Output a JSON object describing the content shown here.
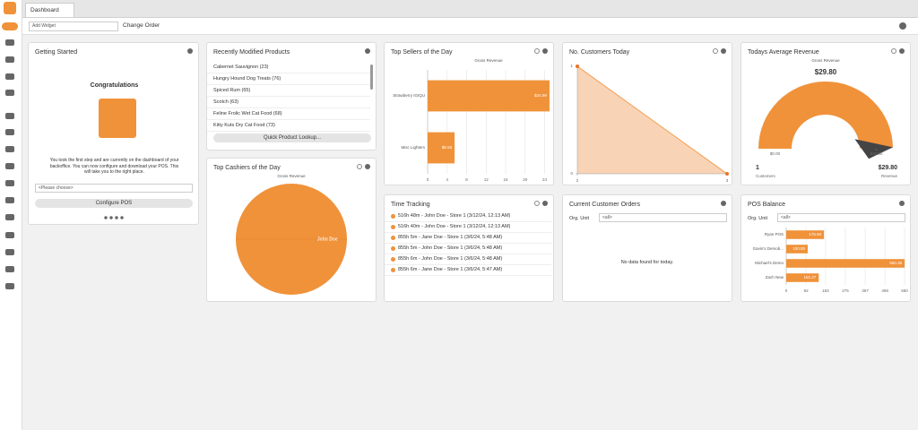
{
  "tabs": [
    "Dashboard"
  ],
  "toolbar": {
    "add_widget": "Add Widget",
    "change_order": "Change Order"
  },
  "getting_started": {
    "title": "Getting Started",
    "heading": "Congratulations",
    "text": "You took the first step and are currently on the dashboard of your backoffice. You can now configure and download your POS. This will take you to the right place.",
    "select": "<Please choose>",
    "button": "Configure POS"
  },
  "recent_products": {
    "title": "Recently Modified Products",
    "items": [
      "Cabernet Sauvignon (23)",
      "Hungry Hound Dog Treats (76)",
      "Spiced Rum (65)",
      "Scotch (63)",
      "Feline Frolic Wet Cat Food (68)",
      "Kitty Kuts Dry Cat Food (73)"
    ],
    "button": "Quick Product Lookup..."
  },
  "time_tracking": {
    "title": "Time Tracking",
    "items": [
      "516h 48m - John Doe - Store 1 (3/12/24, 12:13 AM)",
      "516h 40m - John Doe - Store 1 (3/12/24, 12:13 AM)",
      "855h 5m - Jane Doe - Store 1 (3/6/24, 5:48 AM)",
      "855h 5m - John Doe - Store 1 (3/6/24, 5:48 AM)",
      "855h 6m - John Doe - Store 1 (3/6/24, 5:48 AM)",
      "855h 6m - Jane Doe - Store 1 (3/6/24, 5:47 AM)"
    ]
  },
  "customer_orders": {
    "title": "Current Customer Orders",
    "filter_label": "Org. Unit",
    "filter_value": "<all>",
    "empty": "No data found for today."
  },
  "avg_revenue_footer": {
    "customers": "1",
    "customers_label": "Customers",
    "revenue": "$29.80",
    "revenue_label": "Revenue"
  },
  "pos_balance_filter": {
    "filter_label": "Org. Unit",
    "filter_value": "<all>"
  },
  "chart_data": [
    {
      "type": "hbar",
      "title": "Top Sellers of the Day",
      "subtitle": "Gross Revenue",
      "categories": [
        "Strawberry IGIQU",
        "Misc Lighters"
      ],
      "values": [
        24.99,
        5.53
      ],
      "value_labels": [
        "$24.99",
        "$5.53"
      ],
      "color": "#f0923a",
      "xlim": [
        0,
        25
      ],
      "xticks": [
        0,
        4,
        8,
        12,
        16,
        20,
        24
      ],
      "grid": true
    },
    {
      "type": "pie",
      "title": "Top Cashiers of the Day",
      "subtitle": "Gross Revenue",
      "categories": [
        "John Doe"
      ],
      "values": [
        29.8
      ],
      "color": "#f0923a"
    },
    {
      "type": "area",
      "title": "No. Customers Today",
      "x": [
        2,
        3
      ],
      "values": [
        1,
        0
      ],
      "color": "#f0923a",
      "fill": "#f9d3b5",
      "xlim": [
        2,
        3
      ],
      "xticks": [
        2,
        3
      ],
      "ylim": [
        0,
        1
      ],
      "yticks": [
        0,
        1
      ]
    },
    {
      "type": "hbar",
      "title": "POS Balance",
      "categories": [
        "Ryan POS",
        "Gavin's Demob...",
        "Michael's Demo",
        "Zach New"
      ],
      "values": [
        175.6,
        100,
        550.36,
        151.27
      ],
      "value_labels": [
        "175.60",
        "100.00",
        "550.36",
        "151.27"
      ],
      "color": "#f0923a",
      "xlim": [
        0,
        550
      ],
      "xticks": [
        0,
        92,
        183,
        275,
        367,
        459,
        550
      ],
      "grid": true
    },
    {
      "type": "gauge",
      "title": "Todays Average Revenue",
      "subtitle": "Gross Revenue",
      "value": 29.8,
      "value_label": "$29.80",
      "color": "#f0923a",
      "ylim": [
        0,
        30
      ],
      "yticks": [
        {
          "value": 0,
          "label": "$0.00"
        },
        {
          "value": 30,
          "label": "$30.00"
        }
      ]
    }
  ]
}
